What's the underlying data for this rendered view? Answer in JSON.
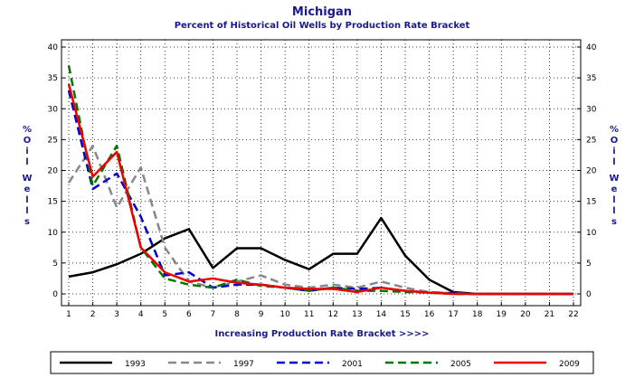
{
  "chart_data": {
    "type": "line",
    "title": "Michigan",
    "subtitle": "Percent of Historical Oil Wells by Production Rate Bracket",
    "xlabel": "Increasing Production Rate Bracket >>>>",
    "ylabel": "% O i l W e l l s",
    "ylabel_chars": [
      "%",
      "O",
      "i",
      "l",
      "",
      "W",
      "e",
      "l",
      "l",
      "s"
    ],
    "xlim": [
      1,
      22
    ],
    "ylim": [
      0,
      40
    ],
    "x": [
      1,
      2,
      3,
      4,
      5,
      6,
      7,
      8,
      9,
      10,
      11,
      12,
      13,
      14,
      15,
      16,
      17,
      18,
      19,
      20,
      21,
      22
    ],
    "xticks": [
      "1",
      "2",
      "3",
      "4",
      "5",
      "6",
      "7",
      "8",
      "9",
      "10",
      "11",
      "12",
      "13",
      "14",
      "15",
      "16",
      "17",
      "18",
      "19",
      "20",
      "21",
      "22"
    ],
    "yticks": [
      "0",
      "5",
      "10",
      "15",
      "20",
      "25",
      "30",
      "35",
      "40"
    ],
    "grid": true,
    "legend_position": "bottom",
    "series": [
      {
        "name": "1993",
        "color": "#000000",
        "dash": "solid",
        "values": [
          2.8,
          3.5,
          4.8,
          6.5,
          9.0,
          10.5,
          4.2,
          7.4,
          7.4,
          5.5,
          4.0,
          6.5,
          6.5,
          12.3,
          6.2,
          2.3,
          0.3,
          0,
          0,
          0,
          0,
          0
        ]
      },
      {
        "name": "1997",
        "color": "#888888",
        "dash": "dashed",
        "values": [
          18.0,
          24.0,
          14.0,
          20.5,
          7.5,
          2.0,
          1.0,
          2.0,
          3.0,
          1.5,
          1.0,
          1.5,
          1.0,
          2.0,
          1.0,
          0.3,
          0.1,
          0,
          0,
          0,
          0,
          0
        ]
      },
      {
        "name": "2001",
        "color": "#0000cc",
        "dash": "dashed",
        "values": [
          33.0,
          17.0,
          19.5,
          12.5,
          3.0,
          3.5,
          1.0,
          1.5,
          1.5,
          1.0,
          0.5,
          1.0,
          0.8,
          1.0,
          0.5,
          0.2,
          0.1,
          0,
          0,
          0,
          0,
          0
        ]
      },
      {
        "name": "2005",
        "color": "#007700",
        "dash": "dashed",
        "values": [
          37.0,
          17.5,
          24.0,
          7.5,
          2.5,
          1.5,
          1.0,
          2.3,
          1.3,
          1.0,
          0.5,
          1.0,
          0.5,
          0.5,
          0.3,
          0.2,
          0,
          0,
          0,
          0,
          0,
          0
        ]
      },
      {
        "name": "2009",
        "color": "#ee0000",
        "dash": "solid",
        "values": [
          34.0,
          19.0,
          23.0,
          7.5,
          3.5,
          2.0,
          2.5,
          1.8,
          1.5,
          1.0,
          0.8,
          0.8,
          0.3,
          1.0,
          0.5,
          0.2,
          0,
          0,
          0,
          0,
          0,
          0
        ]
      }
    ]
  }
}
